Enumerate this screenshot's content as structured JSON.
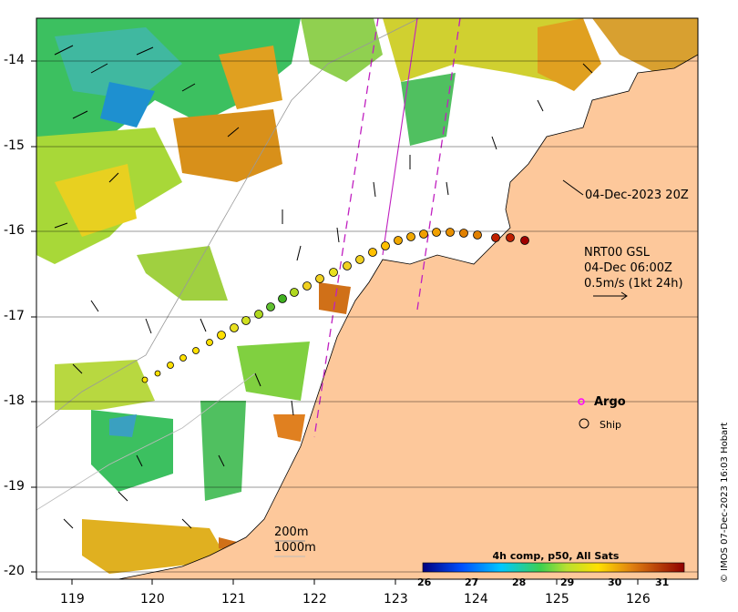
{
  "map": {
    "y_axis_labels": [
      "-14",
      "-15",
      "-16",
      "-17",
      "-18",
      "-19",
      "-20"
    ],
    "x_axis_labels": [
      "119",
      "120",
      "121",
      "122",
      "123",
      "124",
      "125",
      "126"
    ],
    "date_label": "04-Dec-2023 20Z",
    "current_label_lines": [
      "NRT00 GSL",
      "04-Dec 06:00Z",
      "0.5m/s (1kt 24h)"
    ],
    "bathymetry_labels": [
      "200m",
      "1000m"
    ],
    "legend": {
      "argo": "Argo",
      "ship": "Ship"
    },
    "colorbar": {
      "title": "4h comp, p50, All Sats",
      "ticks": [
        "26",
        "27",
        "28",
        "29",
        "30",
        "31"
      ],
      "range": [
        26,
        31.5
      ]
    },
    "credit": "© IMOS 07-Dec-2023 16:03 Hobart",
    "colors": {
      "land": "#fdc89b",
      "ocean_missing": "#ffffff",
      "argo": "#ff00ff",
      "ship_outline": "#000000"
    }
  }
}
